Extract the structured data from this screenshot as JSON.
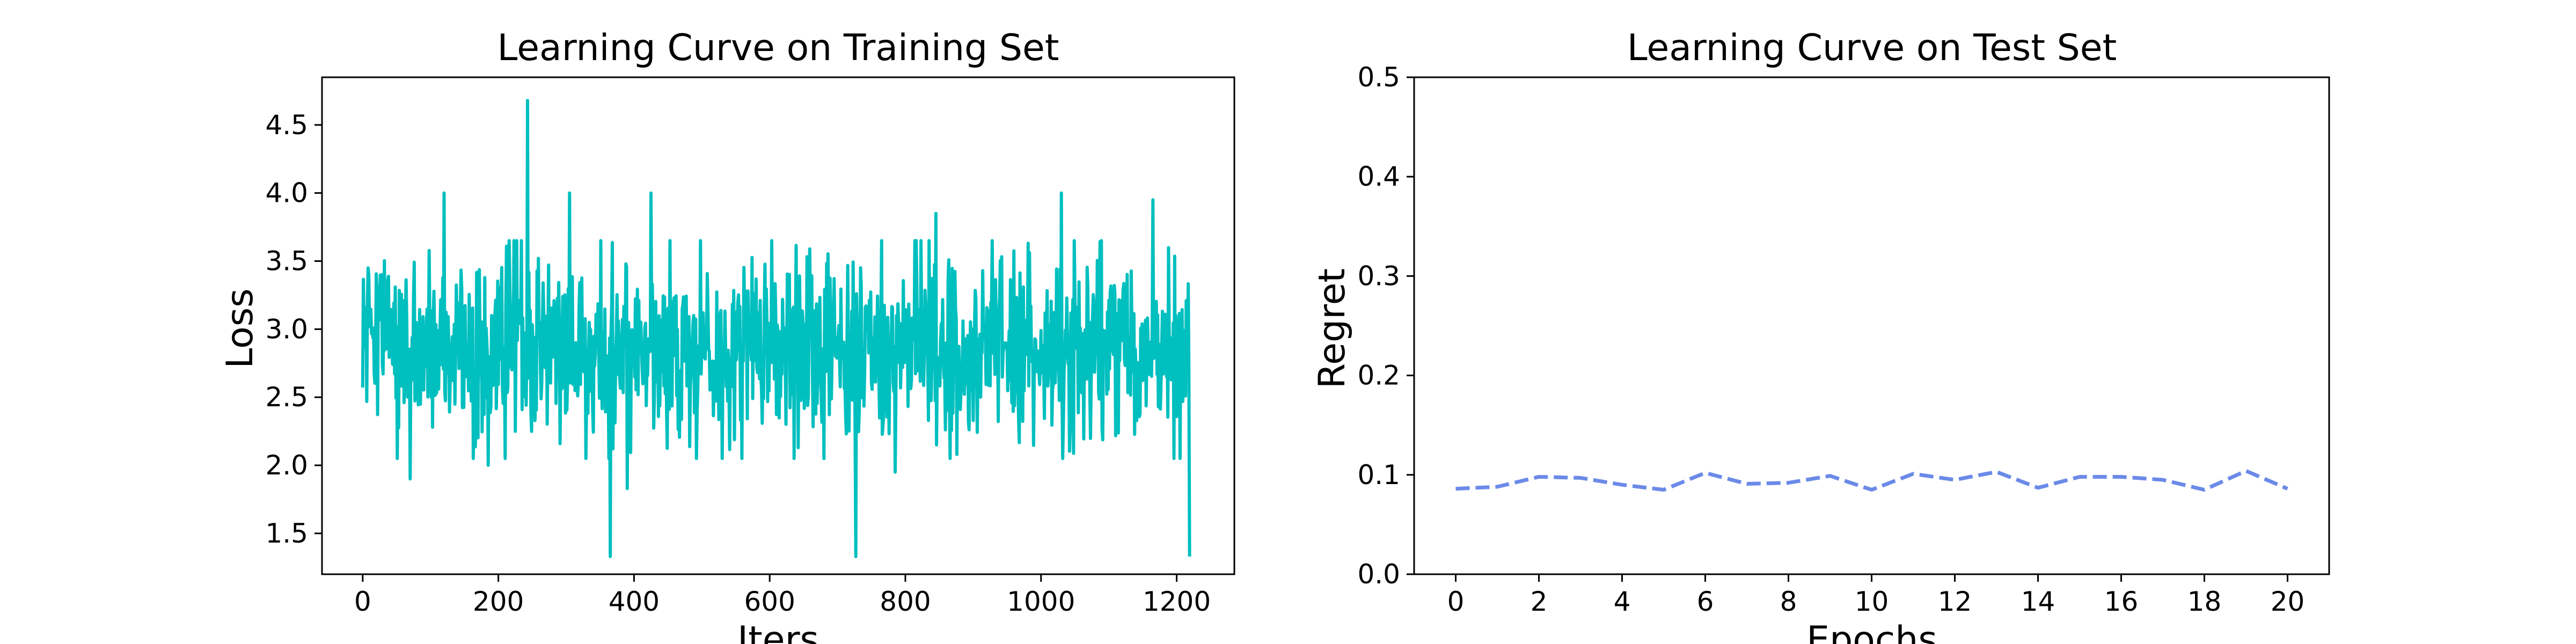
{
  "chart_data": [
    {
      "type": "line",
      "title": "Learning Curve on Training Set",
      "xlabel": "Iters",
      "ylabel": "Loss",
      "xlim": [
        -60,
        1285
      ],
      "ylim": [
        1.2,
        4.85
      ],
      "xticks": [
        0,
        200,
        400,
        600,
        800,
        1000,
        1200
      ],
      "yticks": [
        1.5,
        2.0,
        2.5,
        3.0,
        3.5,
        4.0,
        4.5
      ],
      "xtick_labels": [
        "0",
        "200",
        "400",
        "600",
        "800",
        "1000",
        "1200"
      ],
      "ytick_labels": [
        "1.5",
        "2.0",
        "2.5",
        "3.0",
        "3.5",
        "4.0",
        "4.5"
      ],
      "grid": false,
      "series": [
        {
          "color": "#00bfbf",
          "line_style": "solid",
          "n_points": 1220,
          "x_range": [
            0,
            1219
          ],
          "approx_mean": 2.85,
          "typical_range": [
            2.2,
            3.5
          ],
          "notable_points": [
            {
              "x": 2,
              "y": 2.9
            },
            {
              "x": 8,
              "y": 3.45
            },
            {
              "x": 70,
              "y": 1.9
            },
            {
              "x": 120,
              "y": 4.0
            },
            {
              "x": 185,
              "y": 2.0
            },
            {
              "x": 243,
              "y": 4.68
            },
            {
              "x": 305,
              "y": 4.0
            },
            {
              "x": 365,
              "y": 1.33
            },
            {
              "x": 390,
              "y": 1.83
            },
            {
              "x": 425,
              "y": 4.0
            },
            {
              "x": 680,
              "y": 2.05
            },
            {
              "x": 727,
              "y": 1.33
            },
            {
              "x": 785,
              "y": 1.95
            },
            {
              "x": 845,
              "y": 3.85
            },
            {
              "x": 1030,
              "y": 4.0
            },
            {
              "x": 1165,
              "y": 3.95
            },
            {
              "x": 1205,
              "y": 2.05
            },
            {
              "x": 1219,
              "y": 1.33
            }
          ]
        }
      ]
    },
    {
      "type": "line",
      "title": "Learning Curve on Test Set",
      "xlabel": "Epochs",
      "ylabel": "Regret",
      "xlim": [
        -1,
        21
      ],
      "ylim": [
        0.0,
        0.5
      ],
      "xticks": [
        0,
        2,
        4,
        6,
        8,
        10,
        12,
        14,
        16,
        18,
        20
      ],
      "yticks": [
        0.0,
        0.1,
        0.2,
        0.3,
        0.4,
        0.5
      ],
      "xtick_labels": [
        "0",
        "2",
        "4",
        "6",
        "8",
        "10",
        "12",
        "14",
        "16",
        "18",
        "20"
      ],
      "ytick_labels": [
        "0.0",
        "0.1",
        "0.2",
        "0.3",
        "0.4",
        "0.5"
      ],
      "grid": false,
      "series": [
        {
          "color": "#6b8ae8",
          "line_style": "dashed",
          "x": [
            0,
            1,
            2,
            3,
            4,
            5,
            6,
            7,
            8,
            9,
            10,
            11,
            12,
            13,
            14,
            15,
            16,
            17,
            18,
            19,
            20
          ],
          "y": [
            0.086,
            0.088,
            0.098,
            0.097,
            0.09,
            0.085,
            0.102,
            0.091,
            0.092,
            0.099,
            0.085,
            0.101,
            0.095,
            0.103,
            0.087,
            0.098,
            0.098,
            0.095,
            0.085,
            0.104,
            0.086
          ]
        }
      ]
    }
  ]
}
